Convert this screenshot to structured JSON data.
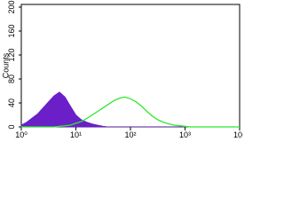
{
  "chart_data": {
    "type": "area",
    "y_label": "Counts",
    "x": [
      1,
      1.26,
      1.58,
      2,
      2.51,
      3.16,
      3.98,
      5.01,
      6.31,
      7.94,
      10,
      12.6,
      15.8,
      20,
      25.1,
      31.6,
      39.8,
      50.1,
      63.1,
      79.4,
      100,
      126,
      158,
      200,
      251,
      316,
      398,
      501,
      631,
      794,
      1000,
      1260,
      1580,
      2000,
      2510,
      3160,
      3980,
      5010,
      6310,
      7940,
      10000
    ],
    "series": [
      {
        "color": "#6a1fc8",
        "fill": true,
        "values": [
          3,
          8,
          15,
          22,
          32,
          42,
          52,
          58,
          50,
          35,
          20,
          12,
          8,
          5,
          3,
          1,
          0,
          0,
          0,
          0,
          0,
          0,
          0,
          0,
          0,
          0,
          0,
          0,
          0,
          0,
          0,
          0,
          0,
          0,
          0,
          0,
          0,
          0,
          0,
          0,
          0
        ]
      },
      {
        "color": "#2ee82e",
        "fill": false,
        "values": [
          0,
          0,
          0,
          0,
          0,
          0,
          0,
          1,
          2,
          3,
          6,
          9,
          14,
          20,
          26,
          32,
          38,
          44,
          48,
          50,
          47,
          42,
          35,
          26,
          18,
          12,
          8,
          5,
          3,
          2,
          1,
          0,
          0,
          0,
          0,
          0,
          0,
          0,
          0,
          0,
          0
        ]
      }
    ],
    "xlog": true,
    "xlim": [
      1,
      10000
    ],
    "xticks": [
      {
        "value": 1,
        "label": "10⁰"
      },
      {
        "value": 10,
        "label": "10¹"
      },
      {
        "value": 100,
        "label": "10²"
      },
      {
        "value": 1000,
        "label": "10³"
      },
      {
        "value": 10000,
        "label": "10⁴"
      }
    ],
    "ylim": [
      0,
      200
    ],
    "yticks": [
      0,
      40,
      80,
      120,
      160,
      200
    ]
  }
}
